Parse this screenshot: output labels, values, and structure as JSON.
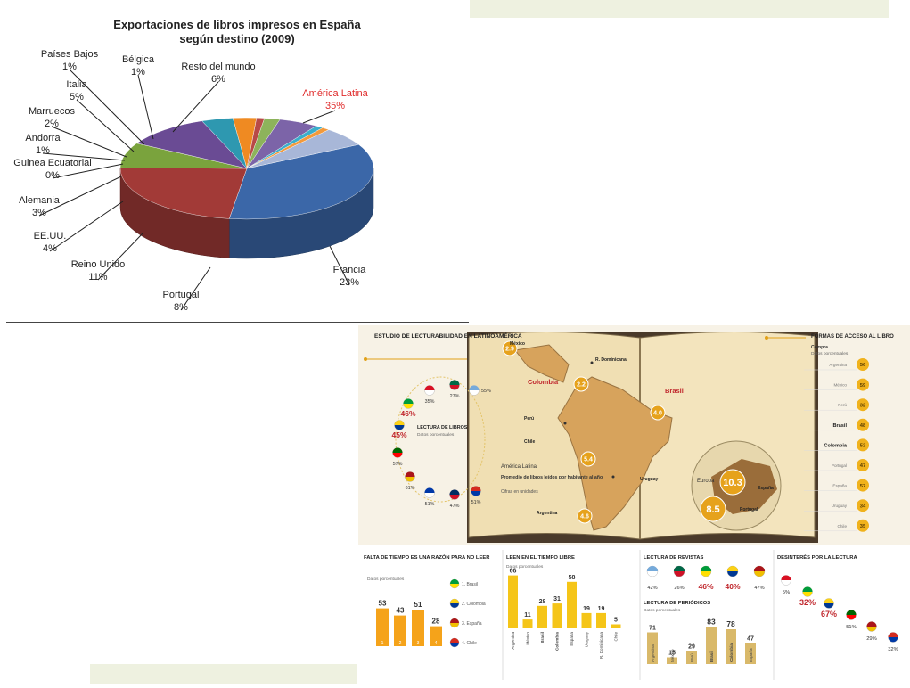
{
  "chart_data": [
    {
      "type": "pie",
      "title": "Exportaciones de libros impresos en España\nsegún destino (2009)",
      "unit": "%",
      "slices": [
        {
          "name": "América Latina",
          "value": 35,
          "label": "35%",
          "color": "#3b67a8"
        },
        {
          "name": "Francia",
          "value": 23,
          "label": "23%",
          "color": "#a23a37"
        },
        {
          "name": "Portugal",
          "value": 8,
          "label": "8%",
          "color": "#7aa33d"
        },
        {
          "name": "Reino Unido",
          "value": 11,
          "label": "11%",
          "color": "#6a4b94"
        },
        {
          "name": "EE.UU.",
          "value": 4,
          "label": "4%",
          "color": "#2e98b0"
        },
        {
          "name": "Alemania",
          "value": 3,
          "label": "3%",
          "color": "#ef8a22"
        },
        {
          "name": "Guinea Ecuatorial",
          "value": 0,
          "label": "0%",
          "color": "#2f5a94"
        },
        {
          "name": "Andorra",
          "value": 1,
          "label": "1%",
          "color": "#b84a47"
        },
        {
          "name": "Marruecos",
          "value": 2,
          "label": "2%",
          "color": "#8db35b"
        },
        {
          "name": "Italia",
          "value": 5,
          "label": "5%",
          "color": "#7c64a8"
        },
        {
          "name": "Países Bajos",
          "value": 1,
          "label": "1%",
          "color": "#3aaecb"
        },
        {
          "name": "Bélgica",
          "value": 1,
          "label": "1%",
          "color": "#f39a3c"
        },
        {
          "name": "Resto del mundo",
          "value": 6,
          "label": "6%",
          "color": "#a8b7d8"
        }
      ],
      "highlight": {
        "name": "América Latina",
        "color": "#e02b2b"
      }
    },
    {
      "type": "bar",
      "title": "FALTA DE TIEMPO ES UNA RAZÓN PARA NO LEER",
      "subtitle": "Datos porcentuales",
      "categories": [
        "1",
        "2",
        "3",
        "4"
      ],
      "values": [
        53,
        43,
        51,
        28
      ],
      "legend": [
        "1. Brasil",
        "2. Colombia",
        "3. España",
        "4. Chile"
      ]
    },
    {
      "type": "bar",
      "title": "LEEN EN EL TIEMPO LIBRE",
      "subtitle": "Datos porcentuales",
      "categories": [
        "Argentina",
        "México",
        "Brasil",
        "Colombia",
        "España",
        "Uruguay",
        "R. Dominicana",
        "Chile"
      ],
      "values": [
        66,
        11,
        28,
        31,
        58,
        19,
        19,
        5
      ]
    },
    {
      "type": "bar",
      "title": "LECTURA DE PERIÓDICOS",
      "subtitle": "Datos porcentuales",
      "categories": [
        "Argentina",
        "México",
        "Perú",
        "Brasil",
        "Colombia",
        "España"
      ],
      "values": [
        71,
        15,
        29,
        83,
        78,
        47
      ]
    },
    {
      "type": "table",
      "title": "LECTURA DE REVISTAS",
      "rows": [
        {
          "country": "Argentina",
          "value": "42%",
          "highlight": false
        },
        {
          "country": "México",
          "value": "26%",
          "highlight": false
        },
        {
          "country": "Brasil",
          "value": "46%",
          "highlight": true
        },
        {
          "country": "Colombia",
          "value": "40%",
          "highlight": true
        },
        {
          "country": "España",
          "value": "47%",
          "highlight": false
        }
      ]
    },
    {
      "type": "table",
      "title": "DESINTERÉS POR LA LECTURA",
      "rows": [
        {
          "country": "Perú",
          "value": "5%",
          "highlight": false
        },
        {
          "country": "Brasil",
          "value": "32%",
          "highlight": true
        },
        {
          "country": "Colombia",
          "value": "67%",
          "highlight": true
        },
        {
          "country": "Portugal",
          "value": "51%",
          "highlight": false
        },
        {
          "country": "España",
          "value": "29%",
          "highlight": false
        },
        {
          "country": "Chile",
          "value": "32%",
          "highlight": false
        }
      ]
    },
    {
      "type": "table",
      "title": "FORMAS DE ACCESO AL LIBRO",
      "subtitle": "Compra",
      "note": "Datos porcentuales",
      "rows": [
        {
          "country": "Argentina",
          "value": "56",
          "bold": false
        },
        {
          "country": "México",
          "value": "59",
          "bold": false
        },
        {
          "country": "Perú",
          "value": "32",
          "bold": false
        },
        {
          "country": "Brasil",
          "value": "48",
          "bold": true
        },
        {
          "country": "Colombia",
          "value": "52",
          "bold": true
        },
        {
          "country": "Portugal",
          "value": "47",
          "bold": false
        },
        {
          "country": "España",
          "value": "57",
          "bold": false
        },
        {
          "country": "Uruguay",
          "value": "34",
          "bold": false
        },
        {
          "country": "Chile",
          "value": "35",
          "bold": false
        }
      ]
    },
    {
      "type": "table",
      "title": "ESTUDIO DE LECTURABILIDAD EN LATINOAMÉRICA",
      "subtitle": "LECTURA DE LIBROS",
      "note": "Datos porcentuales",
      "rows": [
        {
          "country": "Argentina",
          "value": "55%",
          "highlight": false
        },
        {
          "country": "México",
          "value": "27%",
          "highlight": false
        },
        {
          "country": "Perú",
          "value": "35%",
          "highlight": false
        },
        {
          "country": "Brasil",
          "value": "46%",
          "highlight": true
        },
        {
          "country": "Colombia",
          "value": "45%",
          "highlight": true
        },
        {
          "country": "Portugal",
          "value": "57%",
          "highlight": false
        },
        {
          "country": "España",
          "value": "61%",
          "highlight": false
        },
        {
          "country": "Uruguay",
          "value": "51%",
          "highlight": false
        },
        {
          "country": "R. Dominicana",
          "value": "47%",
          "highlight": false
        },
        {
          "country": "Chile",
          "value": "51%",
          "highlight": false
        }
      ]
    },
    {
      "type": "scatter",
      "title": "Promedio de libros leídos por habitante al año",
      "subtitle": "Cifras en unidades",
      "region_label": "América Latina",
      "europe_label": "Europa",
      "points": [
        {
          "name": "México",
          "value": 2.9
        },
        {
          "name": "R. Dominicana",
          "value": null
        },
        {
          "name": "Colombia",
          "value": 2.2,
          "highlight": true
        },
        {
          "name": "Brasil",
          "value": 4.0,
          "highlight": true
        },
        {
          "name": "Perú",
          "value": null
        },
        {
          "name": "Chile",
          "value": 5.4
        },
        {
          "name": "Uruguay",
          "value": null
        },
        {
          "name": "Argentina",
          "value": 4.6
        },
        {
          "name": "España",
          "value": 10.3
        },
        {
          "name": "Portugal",
          "value": 8.5
        }
      ]
    }
  ]
}
